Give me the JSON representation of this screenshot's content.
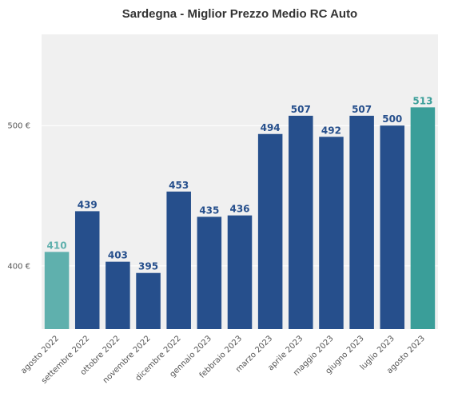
{
  "chart_data": {
    "type": "bar",
    "title": "Sardegna - Miglior Prezzo Medio RC Auto",
    "categories": [
      "agosto 2022",
      "settembre 2022",
      "ottobre 2022",
      "novembre 2022",
      "dicembre 2022",
      "gennaio 2023",
      "febbraio 2023",
      "marzo 2023",
      "aprile 2023",
      "maggio 2023",
      "giugno 2023",
      "luglio 2023",
      "agosto 2023"
    ],
    "values": [
      410,
      439,
      403,
      395,
      453,
      435,
      436,
      494,
      507,
      492,
      507,
      500,
      513
    ],
    "value_labels": [
      "410",
      "439",
      "403",
      "395",
      "453",
      "435",
      "436",
      "494",
      "507",
      "492",
      "507",
      "500",
      "513"
    ],
    "yticks": [
      400,
      500
    ],
    "ytick_labels": [
      "400 €",
      "500 €"
    ],
    "ylim": [
      355,
      565
    ],
    "grid": true,
    "colors": {
      "bar": "#264f8c",
      "first_bar": "#5fb0ad",
      "last_bar": "#3a9e99",
      "label": "#264f8c",
      "first_label": "#5fb0ad",
      "last_label": "#3a9e99",
      "plot_bg": "#f0f0f0",
      "grid": "#ffffff"
    }
  }
}
